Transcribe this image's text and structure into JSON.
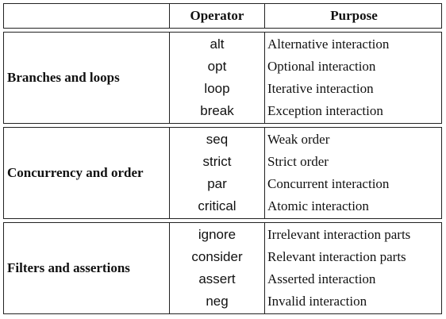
{
  "header": {
    "operator": "Operator",
    "purpose": "Purpose"
  },
  "groups": [
    {
      "label": "Branches and loops",
      "rows": [
        {
          "operator": "alt",
          "purpose": "Alternative interaction"
        },
        {
          "operator": "opt",
          "purpose": "Optional interaction"
        },
        {
          "operator": "loop",
          "purpose": "Iterative interaction"
        },
        {
          "operator": "break",
          "purpose": "Exception interaction"
        }
      ]
    },
    {
      "label": "Concurrency and order",
      "rows": [
        {
          "operator": "seq",
          "purpose": "Weak order"
        },
        {
          "operator": "strict",
          "purpose": "Strict order"
        },
        {
          "operator": "par",
          "purpose": "Concurrent interaction"
        },
        {
          "operator": "critical",
          "purpose": "Atomic interaction"
        }
      ]
    },
    {
      "label": "Filters and assertions",
      "rows": [
        {
          "operator": "ignore",
          "purpose": "Irrelevant interaction parts"
        },
        {
          "operator": "consider",
          "purpose": "Relevant interaction parts"
        },
        {
          "operator": "assert",
          "purpose": "Asserted interaction"
        },
        {
          "operator": "neg",
          "purpose": "Invalid interaction"
        }
      ]
    }
  ]
}
